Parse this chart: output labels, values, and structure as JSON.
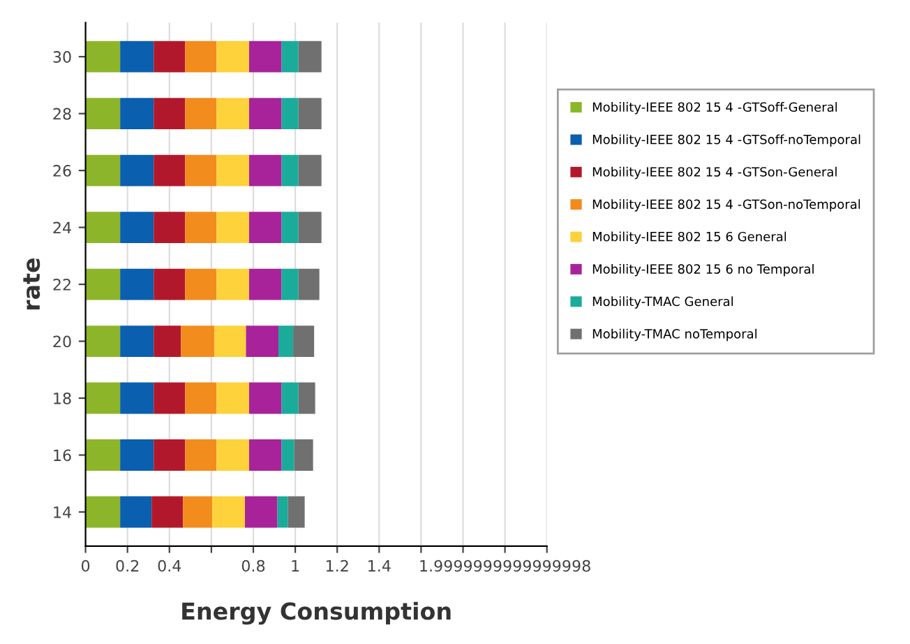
{
  "chart_data": {
    "type": "bar",
    "orientation": "horizontal",
    "stacked": true,
    "xlabel": "Energy Consumption",
    "ylabel": "rate",
    "categories": [
      "30",
      "28",
      "26",
      "24",
      "22",
      "20",
      "18",
      "16",
      "14"
    ],
    "xlim": [
      0,
      2.2
    ],
    "xticks": [
      0,
      0.2,
      0.4,
      {
        "value": 0.6,
        "label": null
      },
      0.8,
      1,
      1.2,
      1.4,
      {
        "value": 1.6,
        "label": null
      },
      {
        "value": 1.8,
        "label": null
      },
      {
        "value": 2.0,
        "label": "1.9999999999999998"
      },
      {
        "value": 2.2,
        "label": null
      }
    ],
    "grid": "x",
    "legend": "right",
    "series": [
      {
        "name": "Mobility-IEEE 802 15 4 -GTSoff-General",
        "color": "#8db52a",
        "values": [
          0.165,
          0.165,
          0.165,
          0.165,
          0.165,
          0.165,
          0.165,
          0.165,
          0.165
        ]
      },
      {
        "name": "Mobility-IEEE 802 15 4 -GTSoff-noTemporal",
        "color": "#0a5fae",
        "values": [
          0.16,
          0.16,
          0.16,
          0.16,
          0.16,
          0.16,
          0.16,
          0.16,
          0.15
        ]
      },
      {
        "name": "Mobility-IEEE 802 15 4 -GTSon-General",
        "color": "#b2182b",
        "values": [
          0.15,
          0.15,
          0.15,
          0.15,
          0.15,
          0.13,
          0.15,
          0.15,
          0.15
        ]
      },
      {
        "name": "Mobility-IEEE 802 15 4 -GTSon-noTemporal",
        "color": "#f28c1c",
        "values": [
          0.15,
          0.15,
          0.15,
          0.15,
          0.15,
          0.16,
          0.15,
          0.15,
          0.14
        ]
      },
      {
        "name": "Mobility-IEEE 802 15 6 General",
        "color": "#fdd23a",
        "values": [
          0.155,
          0.155,
          0.155,
          0.155,
          0.155,
          0.15,
          0.155,
          0.155,
          0.155
        ]
      },
      {
        "name": "Mobility-IEEE 802 15 6 no Temporal",
        "color": "#a8239a",
        "values": [
          0.155,
          0.155,
          0.155,
          0.155,
          0.155,
          0.155,
          0.155,
          0.155,
          0.155
        ]
      },
      {
        "name": "Mobility-TMAC General",
        "color": "#1aab9b",
        "values": [
          0.08,
          0.08,
          0.08,
          0.08,
          0.08,
          0.07,
          0.08,
          0.06,
          0.05
        ]
      },
      {
        "name": "Mobility-TMAC noTemporal",
        "color": "#707070",
        "values": [
          0.11,
          0.11,
          0.11,
          0.11,
          0.1,
          0.1,
          0.08,
          0.09,
          0.08
        ]
      }
    ]
  }
}
